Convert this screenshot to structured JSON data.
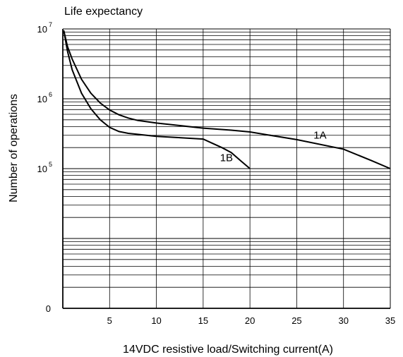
{
  "chart_data": {
    "type": "line",
    "title": "Life expectancy",
    "xlabel": "14VDC resistive load/Switching current(A)",
    "ylabel": "Number of operations",
    "xlim": [
      0,
      35
    ],
    "x_ticks": [
      5,
      10,
      15,
      20,
      25,
      30,
      35
    ],
    "x_tick_labels": [
      "5",
      "10",
      "15",
      "20",
      "25",
      "30",
      "35"
    ],
    "y_scale": "log",
    "ylim": [
      1000,
      10000000
    ],
    "y_ticks": [
      {
        "value": 10000000,
        "base": "10",
        "exponent": "7"
      },
      {
        "value": 1000000,
        "base": "10",
        "exponent": "6"
      },
      {
        "value": 100000,
        "base": "10",
        "exponent": "5"
      },
      {
        "value": 1000,
        "base": "0",
        "exponent": ""
      }
    ],
    "grid": true,
    "series": [
      {
        "name": "1A",
        "x": [
          0.1,
          0.5,
          1,
          2,
          3,
          4,
          5,
          6,
          7,
          8,
          10,
          12,
          15,
          18,
          20,
          25,
          30,
          33,
          35
        ],
        "y": [
          9500000,
          5600000,
          3700000,
          1900000,
          1200000,
          870000,
          690000,
          590000,
          530000,
          490000,
          450000,
          420000,
          380000,
          355000,
          335000,
          260000,
          190000,
          130000,
          100000
        ],
        "label_x": 26.8,
        "label_y": 270000
      },
      {
        "name": "1B",
        "x": [
          0.1,
          0.5,
          1,
          2,
          3,
          4,
          5,
          6,
          7,
          8,
          10,
          12,
          15,
          16,
          17,
          18,
          19,
          20
        ],
        "y": [
          9500000,
          4800000,
          2600000,
          1200000,
          720000,
          500000,
          390000,
          340000,
          320000,
          310000,
          290000,
          280000,
          265000,
          230000,
          200000,
          170000,
          130000,
          100000
        ],
        "label_x": 16.8,
        "label_y": 128000
      }
    ],
    "colors": {
      "axis": "#000000",
      "grid": "#000000",
      "line": "#000000"
    }
  }
}
